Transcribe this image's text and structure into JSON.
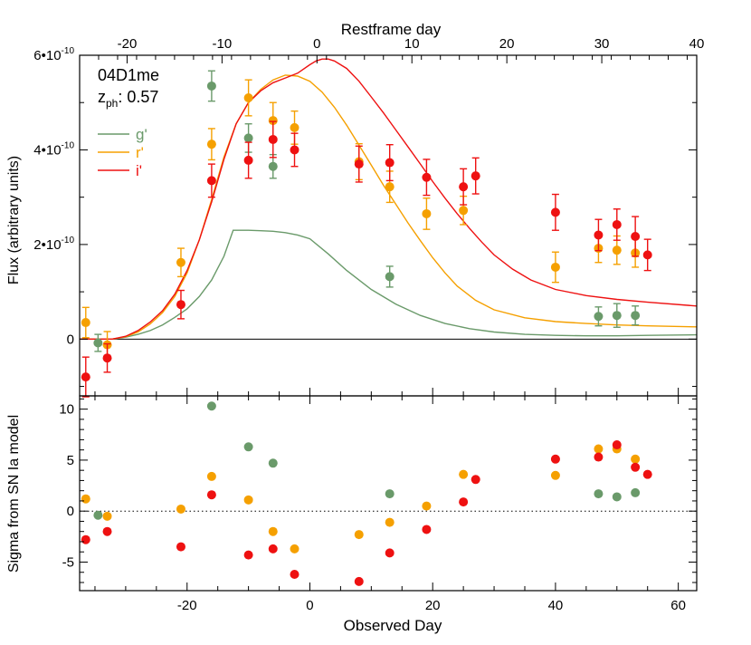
{
  "chart_data": [
    {
      "type": "scatter",
      "title": "",
      "name": "04D1me",
      "annotation_label": "z",
      "annotation_sub": "ph",
      "annotation_value": ": 0.57",
      "xlabel_top": "Restframe day",
      "xlim_top": [
        -25,
        40
      ],
      "xticks_top": [
        -20,
        -10,
        0,
        10,
        20,
        30,
        40
      ],
      "ylabel": "Flux (arbitrary units)",
      "ylim": [
        -1.2e-10,
        6e-10
      ],
      "yticks": [
        {
          "value": 0,
          "base": "0",
          "exp": ""
        },
        {
          "value": 2e-10,
          "base": "2•10",
          "exp": "-10"
        },
        {
          "value": 4e-10,
          "base": "4•10",
          "exp": "-10"
        },
        {
          "value": 6e-10,
          "base": "6•10",
          "exp": "-10"
        }
      ],
      "xlim": [
        -37.5,
        63
      ],
      "legend_placement": "top-left",
      "series": [
        {
          "name": "g'",
          "color": "#6a9a6a",
          "points": [
            {
              "x": -34.5,
              "y": -8e-12,
              "err": 1.8e-11
            },
            {
              "x": -16,
              "y": 5.35e-10,
              "err": 3.2e-11
            },
            {
              "x": -10,
              "y": 4.25e-10,
              "err": 3e-11
            },
            {
              "x": -6,
              "y": 3.65e-10,
              "err": 2.5e-11
            },
            {
              "x": 13,
              "y": 1.32e-10,
              "err": 2.2e-11
            },
            {
              "x": 47,
              "y": 4.8e-11,
              "err": 2e-11
            },
            {
              "x": 50,
              "y": 5e-11,
              "err": 2.5e-11
            },
            {
              "x": 53,
              "y": 5e-11,
              "err": 2e-11
            }
          ],
          "model": {
            "x": [
              -37.5,
              -32.2,
              -30,
              -28,
              -26,
              -24,
              -22,
              -20,
              -18,
              -16,
              -14,
              -12.5,
              -10,
              -8,
              -6,
              -4,
              -2,
              0,
              3,
              6,
              10,
              14,
              18,
              22,
              26,
              30,
              35,
              40,
              45,
              50,
              55,
              63
            ],
            "y": [
              0,
              0,
              4e-12,
              1e-11,
              1.8e-11,
              3e-11,
              4.6e-11,
              6.4e-11,
              9e-11,
              1.25e-10,
              1.75e-10,
              2.3e-10,
              2.3e-10,
              2.29e-10,
              2.28e-10,
              2.25e-10,
              2.2e-10,
              2.12e-10,
              1.8e-10,
              1.45e-10,
              1.05e-10,
              7.4e-11,
              5e-11,
              3.3e-11,
              2.2e-11,
              1.5e-11,
              1e-11,
              8e-12,
              7e-12,
              7e-12,
              8e-12,
              9e-12
            ]
          }
        },
        {
          "name": "r'",
          "color": "#f5a000",
          "points": [
            {
              "x": -36.5,
              "y": 3.5e-11,
              "err": 3.2e-11
            },
            {
              "x": -33,
              "y": -1.2e-11,
              "err": 2.8e-11
            },
            {
              "x": -21,
              "y": 1.62e-10,
              "err": 3e-11
            },
            {
              "x": -16,
              "y": 4.12e-10,
              "err": 3.3e-11
            },
            {
              "x": -10,
              "y": 5.1e-10,
              "err": 3.8e-11
            },
            {
              "x": -6,
              "y": 4.62e-10,
              "err": 3.8e-11
            },
            {
              "x": -2.5,
              "y": 4.47e-10,
              "err": 3.5e-11
            },
            {
              "x": 8,
              "y": 3.75e-10,
              "err": 3.8e-11
            },
            {
              "x": 13,
              "y": 3.22e-10,
              "err": 3.3e-11
            },
            {
              "x": 19,
              "y": 2.65e-10,
              "err": 3.3e-11
            },
            {
              "x": 25,
              "y": 2.72e-10,
              "err": 3e-11
            },
            {
              "x": 40,
              "y": 1.52e-10,
              "err": 3.2e-11
            },
            {
              "x": 47,
              "y": 1.92e-10,
              "err": 3e-11
            },
            {
              "x": 50,
              "y": 1.88e-10,
              "err": 3e-11
            },
            {
              "x": 53,
              "y": 1.82e-10,
              "err": 3e-11
            }
          ],
          "model": {
            "x": [
              -37.5,
              -32.2,
              -30,
              -28,
              -26,
              -24,
              -22,
              -20,
              -18,
              -16,
              -14,
              -12,
              -10,
              -8,
              -6,
              -4,
              -2,
              0,
              2,
              4,
              6,
              8,
              10,
              12,
              14,
              16,
              18,
              20,
              22,
              24,
              27,
              30,
              35,
              40,
              45,
              50,
              55,
              63
            ],
            "y": [
              0,
              0,
              5e-12,
              1.5e-11,
              3.2e-11,
              5.6e-11,
              9e-11,
              1.4e-10,
              2.1e-10,
              2.95e-10,
              3.85e-10,
              4.55e-10,
              5e-10,
              5.28e-10,
              5.48e-10,
              5.58e-10,
              5.56e-10,
              5.45e-10,
              5.22e-10,
              4.9e-10,
              4.52e-10,
              4.1e-10,
              3.68e-10,
              3.25e-10,
              2.85e-10,
              2.45e-10,
              2.08e-10,
              1.72e-10,
              1.4e-10,
              1.12e-10,
              8.2e-11,
              6.2e-11,
              4.5e-11,
              3.7e-11,
              3.3e-11,
              3e-11,
              2.8e-11,
              2.6e-11
            ]
          }
        },
        {
          "name": "i'",
          "color": "#ee1111",
          "points": [
            {
              "x": -36.5,
              "y": -8e-11,
              "err": 4.2e-11
            },
            {
              "x": -33,
              "y": -4e-11,
              "err": 3e-11
            },
            {
              "x": -21,
              "y": 7.3e-11,
              "err": 3e-11
            },
            {
              "x": -16,
              "y": 3.35e-10,
              "err": 3.5e-11
            },
            {
              "x": -10,
              "y": 3.78e-10,
              "err": 3.8e-11
            },
            {
              "x": -6,
              "y": 4.22e-10,
              "err": 3.8e-11
            },
            {
              "x": -2.5,
              "y": 4e-10,
              "err": 3.5e-11
            },
            {
              "x": 8,
              "y": 3.7e-10,
              "err": 3.8e-11
            },
            {
              "x": 13,
              "y": 3.73e-10,
              "err": 3.8e-11
            },
            {
              "x": 19,
              "y": 3.42e-10,
              "err": 3.8e-11
            },
            {
              "x": 25,
              "y": 3.22e-10,
              "err": 3.8e-11
            },
            {
              "x": 27,
              "y": 3.45e-10,
              "err": 3.8e-11
            },
            {
              "x": 40,
              "y": 2.68e-10,
              "err": 3.8e-11
            },
            {
              "x": 47,
              "y": 2.2e-10,
              "err": 3.3e-11
            },
            {
              "x": 50,
              "y": 2.42e-10,
              "err": 3.3e-11
            },
            {
              "x": 53,
              "y": 2.17e-10,
              "err": 4.2e-11
            },
            {
              "x": 55,
              "y": 1.78e-10,
              "err": 3.3e-11
            }
          ],
          "model": {
            "x": [
              -37.5,
              -32.2,
              -30,
              -28,
              -26,
              -24,
              -22,
              -20,
              -18,
              -16,
              -14,
              -12,
              -10,
              -8,
              -6,
              -4,
              -2,
              0,
              1,
              2,
              3,
              4,
              6,
              8,
              10,
              12,
              14,
              16,
              18,
              20,
              22,
              24,
              26,
              28,
              30,
              33,
              36,
              40,
              45,
              50,
              55,
              63
            ],
            "y": [
              0,
              0,
              6e-12,
              1.8e-11,
              3.6e-11,
              6e-11,
              9.5e-11,
              1.45e-10,
              2.1e-10,
              2.9e-10,
              3.8e-10,
              4.55e-10,
              5e-10,
              5.25e-10,
              5.42e-10,
              5.52e-10,
              5.62e-10,
              5.8e-10,
              5.88e-10,
              5.92e-10,
              5.92e-10,
              5.88e-10,
              5.72e-10,
              5.45e-10,
              5.12e-10,
              4.78e-10,
              4.42e-10,
              4.06e-10,
              3.7e-10,
              3.33e-10,
              2.98e-10,
              2.65e-10,
              2.34e-10,
              2.05e-10,
              1.78e-10,
              1.48e-10,
              1.25e-10,
              1.05e-10,
              9.2e-11,
              8.4e-11,
              7.8e-11,
              7e-11
            ]
          }
        }
      ]
    },
    {
      "type": "scatter",
      "title": "",
      "xlabel": "Observed Day",
      "ylabel": "Sigma from SN Ia model",
      "xlim": [
        -37.5,
        63
      ],
      "ylim": [
        -7.8,
        11.3
      ],
      "xticks": [
        -20,
        0,
        20,
        40,
        60
      ],
      "yticks": [
        -5,
        0,
        5,
        10
      ],
      "zero_line": "dotted",
      "series": [
        {
          "name": "g'",
          "color": "#6a9a6a",
          "points": [
            {
              "x": -34.5,
              "y": -0.4
            },
            {
              "x": -16,
              "y": 10.3
            },
            {
              "x": -10,
              "y": 6.3
            },
            {
              "x": -6,
              "y": 4.7
            },
            {
              "x": 13,
              "y": 1.7
            },
            {
              "x": 47,
              "y": 1.7
            },
            {
              "x": 50,
              "y": 1.4
            },
            {
              "x": 53,
              "y": 1.8
            }
          ]
        },
        {
          "name": "r'",
          "color": "#f5a000",
          "points": [
            {
              "x": -36.5,
              "y": 1.2
            },
            {
              "x": -33,
              "y": -0.5
            },
            {
              "x": -21,
              "y": 0.2
            },
            {
              "x": -16,
              "y": 3.4
            },
            {
              "x": -10,
              "y": 1.1
            },
            {
              "x": -6,
              "y": -2.0
            },
            {
              "x": -2.5,
              "y": -3.7
            },
            {
              "x": 8,
              "y": -2.3
            },
            {
              "x": 13,
              "y": -1.1
            },
            {
              "x": 19,
              "y": 0.5
            },
            {
              "x": 25,
              "y": 3.6
            },
            {
              "x": 40,
              "y": 3.5
            },
            {
              "x": 47,
              "y": 6.1
            },
            {
              "x": 50,
              "y": 6.1
            },
            {
              "x": 53,
              "y": 5.1
            }
          ]
        },
        {
          "name": "i'",
          "color": "#ee1111",
          "points": [
            {
              "x": -36.5,
              "y": -2.8
            },
            {
              "x": -33,
              "y": -2.0
            },
            {
              "x": -21,
              "y": -3.5
            },
            {
              "x": -16,
              "y": 1.6
            },
            {
              "x": -10,
              "y": -4.3
            },
            {
              "x": -6,
              "y": -3.7
            },
            {
              "x": -2.5,
              "y": -6.2
            },
            {
              "x": 8,
              "y": -6.9
            },
            {
              "x": 13,
              "y": -4.1
            },
            {
              "x": 19,
              "y": -1.8
            },
            {
              "x": 25,
              "y": 0.9
            },
            {
              "x": 27,
              "y": 3.1
            },
            {
              "x": 40,
              "y": 5.1
            },
            {
              "x": 47,
              "y": 5.3
            },
            {
              "x": 50,
              "y": 6.5
            },
            {
              "x": 53,
              "y": 4.3
            },
            {
              "x": 55,
              "y": 3.6
            }
          ]
        }
      ]
    }
  ]
}
